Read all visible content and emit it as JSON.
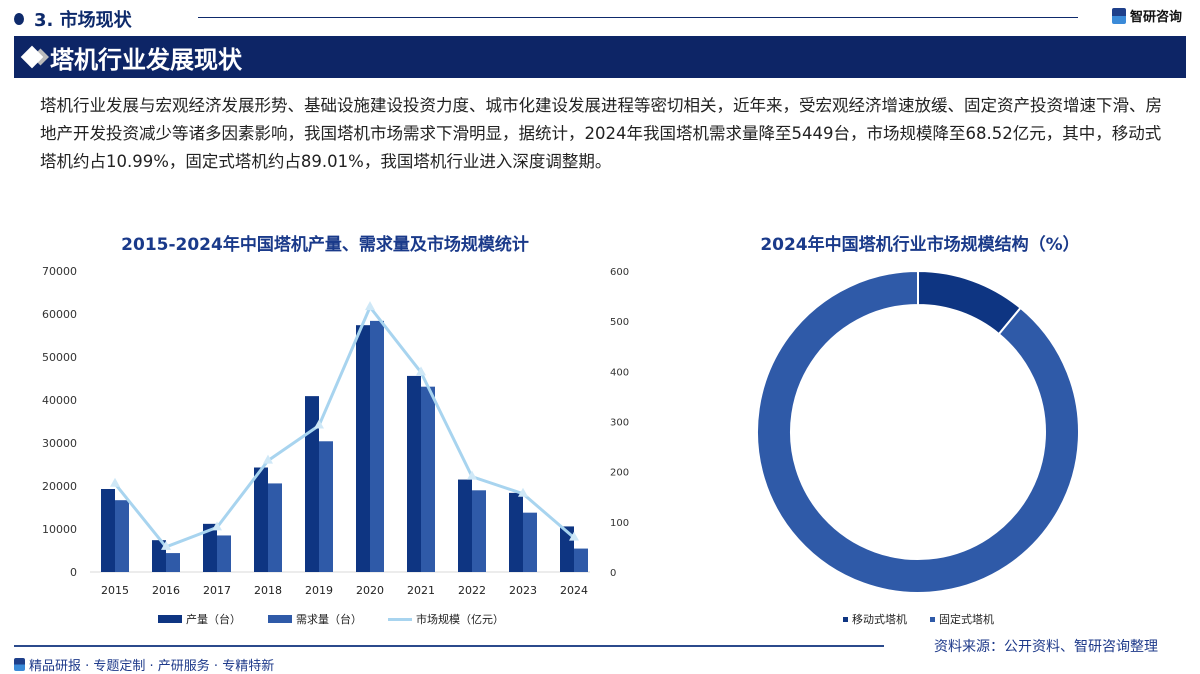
{
  "header": {
    "section": "3. 市场现状",
    "brand": "智研咨询",
    "banner_title": "塔机行业发展现状"
  },
  "paragraph": "塔机行业发展与宏观经济发展形势、基础设施建设投资力度、城市化建设发展进程等密切相关，近年来，受宏观经济增速放缓、固定资产投资增速下滑、房地产开发投资减少等诸多因素影响，我国塔机市场需求下滑明显，据统计，2024年我国塔机需求量降至5449台，市场规模降至68.52亿元，其中，移动式塔机约占10.99%，固定式塔机约占89.01%，我国塔机行业进入深度调整期。",
  "chart_data": [
    {
      "type": "bar+line",
      "title": "2015-2024年中国塔机产量、需求量及市场规模统计",
      "categories": [
        "2015",
        "2016",
        "2017",
        "2018",
        "2019",
        "2020",
        "2021",
        "2022",
        "2023",
        "2024"
      ],
      "series": [
        {
          "name": "产量（台）",
          "type": "bar",
          "axis": "left",
          "color": "#0e3582",
          "values": [
            19300,
            7400,
            11200,
            24300,
            40900,
            57400,
            45600,
            21500,
            18400,
            10600
          ]
        },
        {
          "name": "需求量（台）",
          "type": "bar",
          "axis": "left",
          "color": "#2f5aa8",
          "values": [
            16700,
            4400,
            8500,
            20600,
            30400,
            58400,
            43100,
            19000,
            13800,
            5449
          ]
        },
        {
          "name": "市场规模（亿元）",
          "type": "line",
          "axis": "right",
          "color": "#a8d4ef",
          "values": [
            176,
            50,
            89,
            222,
            292,
            528,
            398,
            190,
            156,
            68.52
          ]
        }
      ],
      "yleft": {
        "range": [
          0,
          70000
        ],
        "ticks": [
          "0",
          "10000",
          "20000",
          "30000",
          "40000",
          "50000",
          "60000",
          "70000"
        ]
      },
      "yright": {
        "range": [
          0,
          600
        ],
        "ticks": [
          "0",
          "100",
          "200",
          "300",
          "400",
          "500",
          "600"
        ]
      },
      "legend": "bottom",
      "grid": false
    },
    {
      "type": "pie",
      "donut": true,
      "title": "2024年中国塔机行业市场规模结构（%）",
      "slices": [
        {
          "name": "移动式塔机",
          "value": 10.99,
          "color": "#0e3582"
        },
        {
          "name": "固定式塔机",
          "value": 89.01,
          "color": "#2f5aa8"
        }
      ],
      "legend": "bottom-right"
    }
  ],
  "footer": {
    "source": "资料来源：公开资料、智研咨询整理",
    "slogan": "精品研报 · 专题定制 · 产研服务 · 专精特新"
  }
}
